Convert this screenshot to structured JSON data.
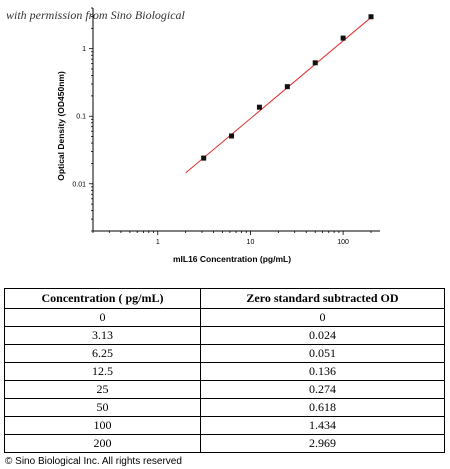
{
  "watermark": "with permission from Sino Biological",
  "chart_data": {
    "type": "scatter",
    "xscale": "log",
    "yscale": "log",
    "xlabel": "mIL16 Concentration (pg/mL)",
    "ylabel": "Optical Density (OD450nm)",
    "xlim": [
      0.2,
      250
    ],
    "ylim": [
      0.002,
      4
    ],
    "x_ticks": [
      1,
      10,
      100
    ],
    "x_tick_labels": [
      "1",
      "10",
      "100"
    ],
    "y_ticks": [
      0.01,
      0.1,
      1
    ],
    "y_tick_labels": [
      "0.01",
      "0.1",
      "1"
    ],
    "grid": false,
    "points": {
      "x": [
        3.13,
        6.25,
        12.5,
        25,
        50,
        100,
        200
      ],
      "y": [
        0.024,
        0.051,
        0.136,
        0.274,
        0.618,
        1.434,
        2.969
      ]
    },
    "fit_line": {
      "x": [
        2,
        200
      ],
      "y": [
        0.0145,
        2.9
      ],
      "color": "#e03030"
    },
    "point_color": "#111111"
  },
  "table": {
    "headers": [
      "Concentration ( pg/mL)",
      "Zero standard subtracted OD"
    ],
    "rows": [
      [
        "0",
        "0"
      ],
      [
        "3.13",
        "0.024"
      ],
      [
        "6.25",
        "0.051"
      ],
      [
        "12.5",
        "0.136"
      ],
      [
        "25",
        "0.274"
      ],
      [
        "50",
        "0.618"
      ],
      [
        "100",
        "1.434"
      ],
      [
        "200",
        "2.969"
      ]
    ]
  },
  "copyright": "© Sino Biological Inc. All rights reserved"
}
